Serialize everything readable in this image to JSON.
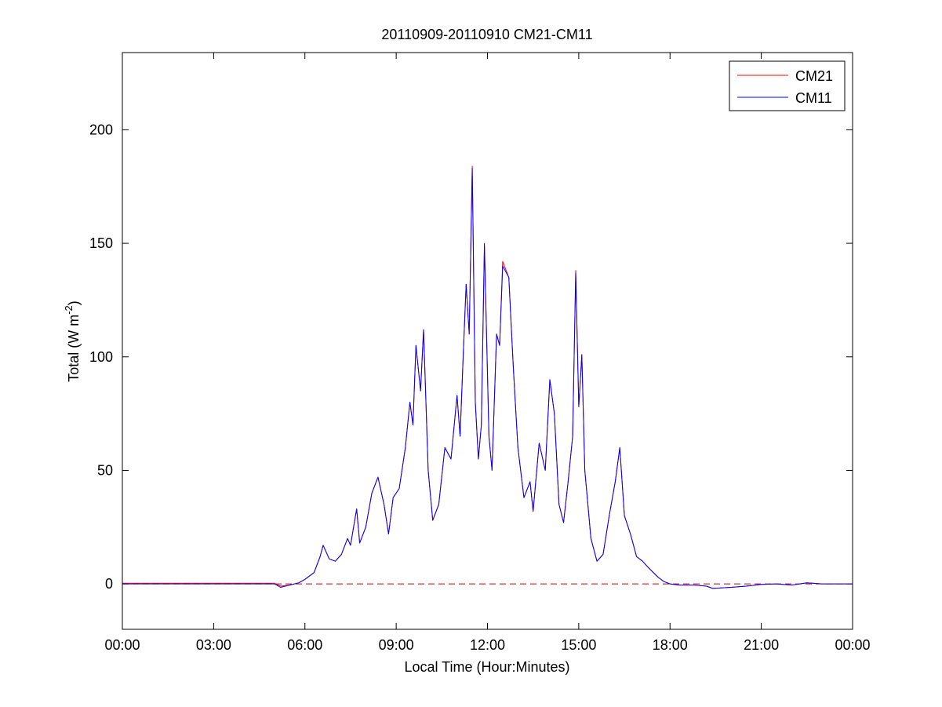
{
  "chart_data": {
    "type": "line",
    "title": "20110909-20110910 CM21-CM11",
    "xlabel": "Local Time (Hour:Minutes)",
    "ylabel": {
      "text": "Total (W m",
      "sup": "-2",
      "end": ")"
    },
    "x": [
      0,
      1,
      2,
      3,
      4,
      5,
      5.2,
      5.5,
      5.8,
      6.0,
      6.3,
      6.5,
      6.6,
      6.8,
      7.0,
      7.2,
      7.4,
      7.5,
      7.7,
      7.8,
      8.0,
      8.2,
      8.4,
      8.6,
      8.75,
      8.9,
      9.1,
      9.3,
      9.45,
      9.55,
      9.65,
      9.8,
      9.9,
      10.05,
      10.2,
      10.4,
      10.6,
      10.8,
      11.0,
      11.1,
      11.2,
      11.3,
      11.4,
      11.5,
      11.6,
      11.7,
      11.8,
      11.9,
      12.05,
      12.15,
      12.3,
      12.4,
      12.5,
      12.7,
      12.85,
      13.0,
      13.2,
      13.4,
      13.5,
      13.7,
      13.9,
      14.05,
      14.2,
      14.35,
      14.5,
      14.65,
      14.8,
      14.9,
      15.0,
      15.1,
      15.2,
      15.4,
      15.6,
      15.8,
      16.0,
      16.2,
      16.35,
      16.5,
      16.7,
      16.9,
      17.1,
      17.3,
      17.6,
      17.8,
      18.0,
      18.3,
      18.8,
      19.2,
      19.4,
      20.0,
      20.5,
      21.0,
      21.5,
      22.0,
      22.5,
      23.0,
      24
    ],
    "series": [
      {
        "name": "CM21",
        "color": "#ff0000",
        "values": [
          0.3,
          0.3,
          0.3,
          0.3,
          0.3,
          0.3,
          -1,
          -0.5,
          0.5,
          2,
          5,
          12,
          17,
          11,
          10,
          13,
          20,
          17,
          33,
          18,
          25,
          40,
          47,
          35,
          22,
          38,
          42,
          60,
          80,
          70,
          105,
          85,
          112,
          50,
          28,
          35,
          60,
          55,
          83,
          65,
          100,
          132,
          110,
          184,
          80,
          55,
          70,
          149,
          65,
          50,
          110,
          105,
          142,
          135,
          95,
          60,
          38,
          45,
          32,
          62,
          50,
          90,
          75,
          35,
          27,
          45,
          65,
          138,
          78,
          101,
          50,
          20,
          10,
          13,
          30,
          45,
          60,
          30,
          22,
          12,
          10,
          7,
          3,
          1,
          0,
          -0.5,
          -0.5,
          -1,
          -2,
          -1.5,
          -1,
          -0.2,
          0,
          -0.5,
          0.5,
          0,
          0
        ]
      },
      {
        "name": "CM11",
        "color": "#0000ff",
        "values": [
          0,
          0,
          0,
          0,
          0,
          0,
          -1.5,
          -0.5,
          0.5,
          2,
          5,
          12,
          17,
          11,
          10,
          13,
          20,
          17,
          33,
          18,
          25,
          40,
          47,
          35,
          22,
          38,
          42,
          60,
          80,
          70,
          105,
          85,
          112,
          50,
          28,
          35,
          60,
          55,
          83,
          65,
          100,
          132,
          110,
          183,
          80,
          55,
          70,
          150,
          65,
          50,
          110,
          105,
          140,
          135,
          95,
          60,
          38,
          45,
          32,
          62,
          50,
          90,
          75,
          35,
          27,
          45,
          65,
          137,
          78,
          101,
          50,
          20,
          10,
          13,
          30,
          45,
          60,
          30,
          22,
          12,
          10,
          7,
          3,
          1,
          0,
          -0.5,
          -0.5,
          -1,
          -2,
          -1.5,
          -1,
          -0.2,
          0,
          -0.5,
          0.5,
          0,
          0
        ]
      }
    ],
    "reference_line": {
      "value": 0,
      "color": "#c00000",
      "style": "dashed"
    },
    "xlim": [
      0,
      24
    ],
    "xticks": [
      {
        "value": 0,
        "label": "00:00"
      },
      {
        "value": 3,
        "label": "03:00"
      },
      {
        "value": 6,
        "label": "06:00"
      },
      {
        "value": 9,
        "label": "09:00"
      },
      {
        "value": 12,
        "label": "12:00"
      },
      {
        "value": 15,
        "label": "15:00"
      },
      {
        "value": 18,
        "label": "18:00"
      },
      {
        "value": 21,
        "label": "21:00"
      },
      {
        "value": 24,
        "label": "00:00"
      }
    ],
    "ylim": [
      -20,
      234
    ],
    "yticks": [
      0,
      50,
      100,
      150,
      200
    ],
    "grid": false,
    "legend": "top-right"
  }
}
